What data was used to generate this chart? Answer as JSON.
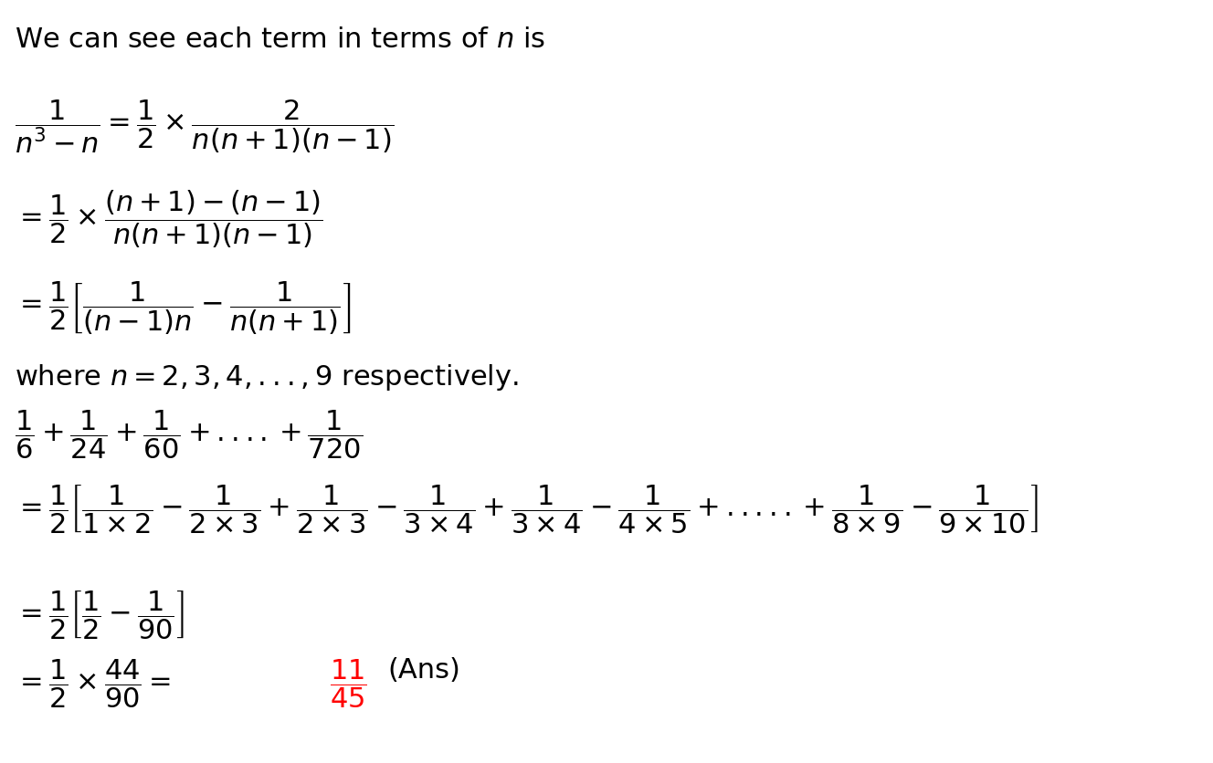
{
  "background_color": "#ffffff",
  "text_color": "#000000",
  "red_color": "#ff0000",
  "figsize": [
    13.28,
    8.36
  ],
  "dpi": 100,
  "fontsize": 22
}
